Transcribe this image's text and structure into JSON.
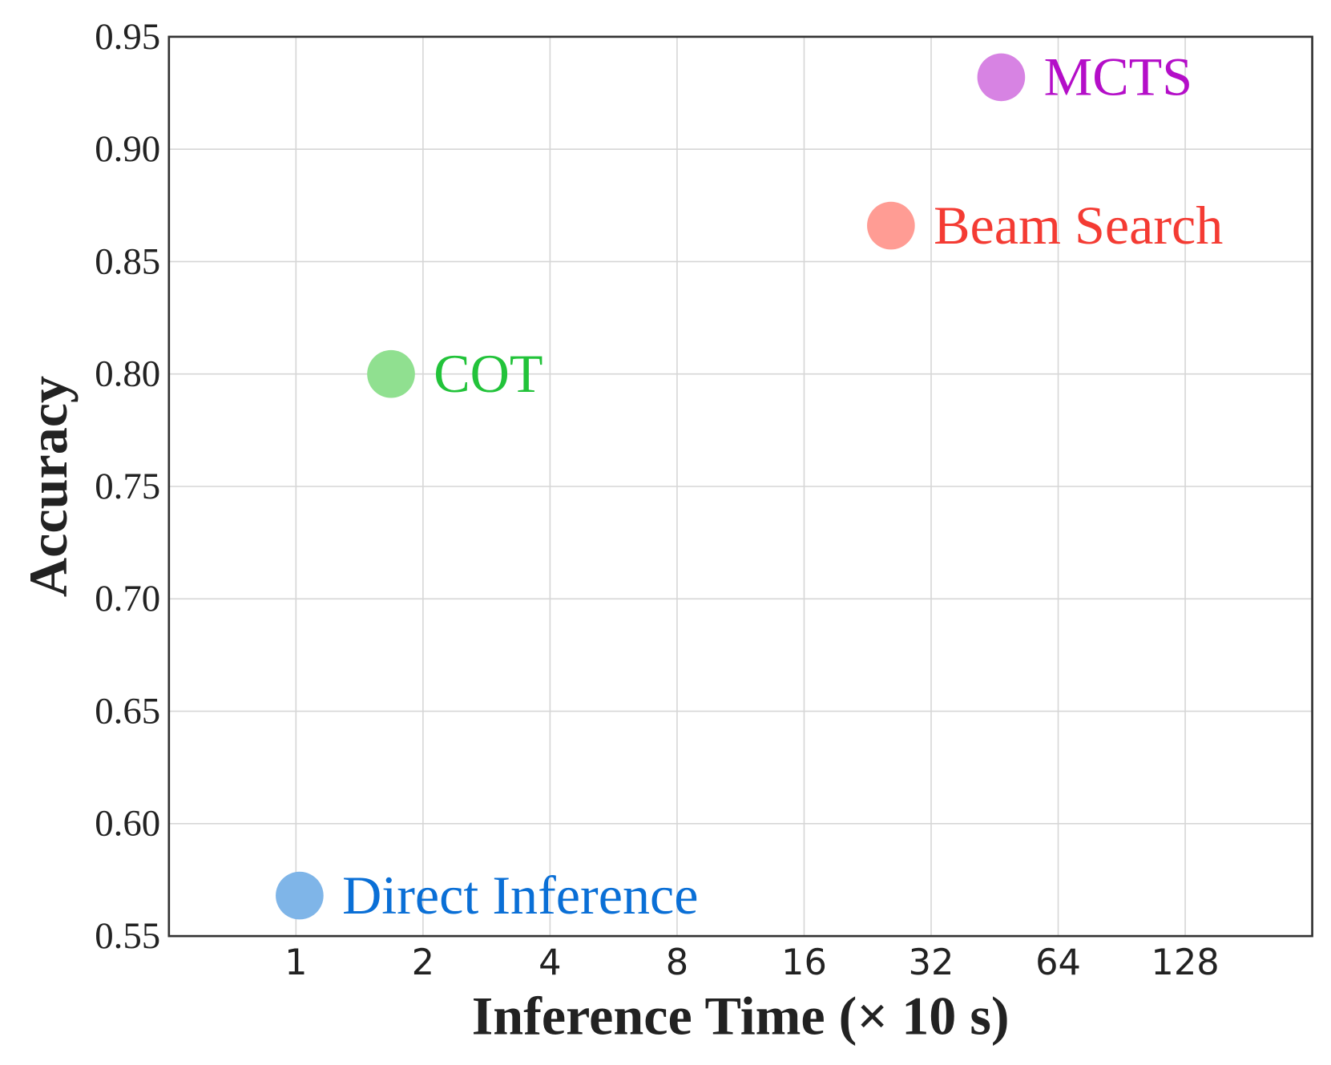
{
  "chart_data": {
    "type": "scatter",
    "title": "",
    "xlabel": "Inference Time (× 10 s)",
    "ylabel": "Accuracy",
    "xscale": "log2",
    "xlim": [
      0.5,
      256
    ],
    "ylim": [
      0.55,
      0.95
    ],
    "xticks": [
      1,
      2,
      4,
      8,
      16,
      32,
      64,
      128
    ],
    "xtick_labels": [
      "1",
      "2",
      "4",
      "8",
      "16",
      "32",
      "64",
      "128"
    ],
    "yticks": [
      0.55,
      0.6,
      0.65,
      0.7,
      0.75,
      0.8,
      0.85,
      0.9,
      0.95
    ],
    "ytick_labels": [
      "0.55",
      "0.60",
      "0.65",
      "0.70",
      "0.75",
      "0.80",
      "0.85",
      "0.90",
      "0.95"
    ],
    "grid": true,
    "legend": "none",
    "points": [
      {
        "label": "Direct Inference",
        "x": 1.02,
        "y": 0.568,
        "marker_color": "#7fb5e8",
        "text_color": "#0a6fd6"
      },
      {
        "label": "COT",
        "x": 1.68,
        "y": 0.8,
        "marker_color": "#90e090",
        "text_color": "#22c33a"
      },
      {
        "label": "Beam Search",
        "x": 25.7,
        "y": 0.866,
        "marker_color": "#ff9c94",
        "text_color": "#f43b33"
      },
      {
        "label": "MCTS",
        "x": 46.9,
        "y": 0.932,
        "marker_color": "#d783e3",
        "text_color": "#b40ec8"
      }
    ]
  }
}
